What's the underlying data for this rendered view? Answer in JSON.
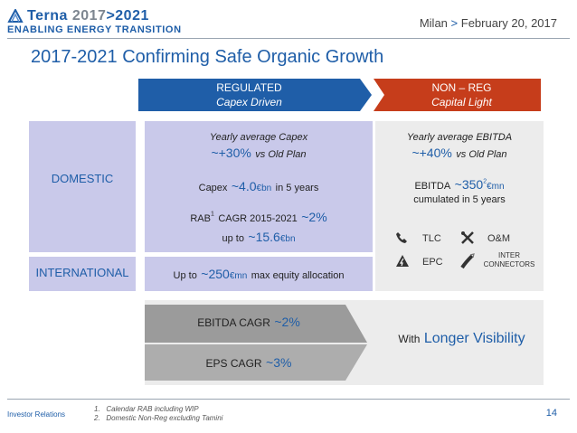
{
  "header": {
    "brand_name": "Terna",
    "brand_years_start": "2017",
    "brand_years_end": ">2021",
    "brand_tagline": "ENABLING ENERGY TRANSITION",
    "date_city": "Milan",
    "date_sep": ">",
    "date_text": "February 20, 2017"
  },
  "slide": {
    "title": "2017-2021 Confirming Safe Organic Growth",
    "page": "14",
    "investor_relations": "Investor Relations"
  },
  "regulated": {
    "title": "REGULATED",
    "subtitle": "Capex Driven"
  },
  "nonreg": {
    "title": "NON – REG",
    "subtitle": "Capital Light"
  },
  "rows": {
    "domestic": "DOMESTIC",
    "international": "INTERNATIONAL"
  },
  "reg_domestic": {
    "capex_label": "Yearly average Capex",
    "capex_value": "~+30%",
    "capex_suffix": "vs Old Plan",
    "capex_prefix": "Capex",
    "capex_amount": "~4.0",
    "capex_unit": "€bn",
    "capex_period": "in 5 years",
    "rab_label": "RAB",
    "rab_sup": "1",
    "rab_cagr": "CAGR 2015-2021",
    "rab_value": "~2%",
    "rab_upto": "up to",
    "rab_amount": "~15.6",
    "rab_unit": "€bn"
  },
  "reg_international": {
    "prefix": "Up to",
    "amount": "~250",
    "unit": "€mn",
    "suffix": "max equity allocation"
  },
  "nonreg_domestic": {
    "ebitda_label": "Yearly average EBITDA",
    "ebitda_value": "~+40%",
    "ebitda_suffix": "vs Old Plan",
    "ebitda_prefix": "EBITDA",
    "ebitda_amount": "~350",
    "ebitda_sup": "2",
    "ebitda_unit": "€mn",
    "ebitda_period": "cumulated in 5 years",
    "tlc": "TLC",
    "om": "O&M",
    "epc": "EPC",
    "inter1": "INTER",
    "inter2": "CONNECTORS"
  },
  "summary": {
    "ebitda_cagr": "EBITDA CAGR",
    "ebitda_cagr_value": "~2%",
    "eps_cagr": "EPS CAGR",
    "eps_cagr_value": "~3%",
    "with": "With",
    "visibility": "Longer Visibility"
  },
  "footnotes": {
    "f1_num": "1.",
    "f1": "Calendar RAB including WIP",
    "f2_num": "2.",
    "f2": "Domestic Non-Reg excluding Tamini"
  },
  "colors": {
    "blue": "#1f5ea8",
    "red": "#c63d1b",
    "lavender": "#c9c9ea",
    "panel": "#ececec",
    "gray_arrow": "#9b9b9b"
  }
}
